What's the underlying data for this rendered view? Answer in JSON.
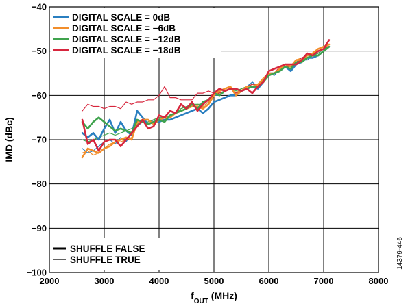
{
  "figure_id": "14379-446",
  "chart_data": {
    "type": "line",
    "title": "",
    "xlabel": {
      "main": "f",
      "sub": "OUT",
      "rest": " (MHz)"
    },
    "ylabel": "IMD (dBc)",
    "xlim": [
      2000,
      8000
    ],
    "ylim": [
      -100,
      -40
    ],
    "x_ticks": [
      2000,
      3000,
      4000,
      5000,
      6000,
      7000,
      8000
    ],
    "y_ticks": [
      -40,
      -50,
      -60,
      -70,
      -80,
      -90,
      -100
    ],
    "y_tick_labels": [
      "−40",
      "−50",
      "−60",
      "−70",
      "−80",
      "−90",
      "−100"
    ],
    "grid": true,
    "legend_placement": "top-left",
    "style_legend_placement": "bottom-left",
    "style_legend": [
      {
        "label": "SHUFFLE FALSE",
        "weight": "thick"
      },
      {
        "label": "SHUFFLE TRUE",
        "weight": "thin"
      }
    ],
    "series": [
      {
        "name": "DIGITAL SCALE = 0dB",
        "color": "#2a7fc0",
        "shuffle": "false",
        "x": [
          2600,
          2700,
          2800,
          2900,
          3000,
          3100,
          3200,
          3300,
          3400,
          3500,
          3600,
          3700,
          3800,
          3900,
          4000,
          4100,
          4200,
          4300,
          4400,
          4500,
          4600,
          4700,
          4800,
          4900,
          5000,
          5100,
          5200,
          5300,
          5400,
          5500,
          5600,
          5700,
          5800,
          5900,
          6000,
          6100,
          6200,
          6300,
          6400,
          6500,
          6600,
          6700,
          6800,
          6900,
          7000,
          7100
        ],
        "y": [
          -68.5,
          -69.5,
          -68.5,
          -70,
          -67.5,
          -65.5,
          -68.5,
          -66,
          -68,
          -69,
          -63.5,
          -65,
          -66.5,
          -66,
          -66,
          -65.5,
          -65.5,
          -65,
          -64.5,
          -64,
          -63.5,
          -63,
          -64,
          -63,
          -61.5,
          -61,
          -60.5,
          -60,
          -60,
          -59,
          -58.5,
          -58,
          -58.5,
          -57,
          -55,
          -55,
          -54.5,
          -53.5,
          -54.5,
          -53,
          -52.5,
          -51.5,
          -51.5,
          -51,
          -50,
          -49
        ]
      },
      {
        "name": "DIGITAL SCALE = −6dB",
        "color": "#f28e2b",
        "shuffle": "false",
        "x": [
          2600,
          2700,
          2800,
          2900,
          3000,
          3100,
          3200,
          3300,
          3400,
          3500,
          3600,
          3700,
          3800,
          3900,
          4000,
          4100,
          4200,
          4300,
          4400,
          4500,
          4600,
          4700,
          4800,
          4900,
          5000,
          5100,
          5200,
          5300,
          5400,
          5500,
          5600,
          5700,
          5800,
          5900,
          6000,
          6100,
          6200,
          6300,
          6400,
          6500,
          6600,
          6700,
          6800,
          6900,
          7000,
          7100
        ],
        "y": [
          -74,
          -72,
          -72.5,
          -73,
          -72,
          -71.5,
          -70.5,
          -70,
          -69.5,
          -70,
          -66,
          -65.5,
          -65.5,
          -66.5,
          -65.5,
          -65,
          -65,
          -64,
          -63.5,
          -63,
          -62.5,
          -62.5,
          -63,
          -62,
          -60,
          -59,
          -58.5,
          -58,
          -60,
          -59,
          -58,
          -58,
          -57.5,
          -56.5,
          -55,
          -55,
          -54,
          -53,
          -53.5,
          -52,
          -52,
          -51,
          -50.5,
          -49.5,
          -49,
          -48.5
        ]
      },
      {
        "name": "DIGITAL SCALE = −12dB",
        "color": "#3fa34d",
        "shuffle": "false",
        "x": [
          2600,
          2700,
          2800,
          2900,
          3000,
          3100,
          3200,
          3300,
          3400,
          3500,
          3600,
          3700,
          3800,
          3900,
          4000,
          4100,
          4200,
          4300,
          4400,
          4500,
          4600,
          4700,
          4800,
          4900,
          5000,
          5100,
          5200,
          5300,
          5400,
          5500,
          5600,
          5700,
          5800,
          5900,
          6000,
          6100,
          6200,
          6300,
          6400,
          6500,
          6600,
          6700,
          6800,
          6900,
          7000,
          7100
        ],
        "y": [
          -66,
          -67.5,
          -66,
          -65,
          -66,
          -67,
          -68,
          -67.5,
          -68,
          -68.5,
          -65.5,
          -66,
          -66.5,
          -66,
          -65.5,
          -66,
          -64.5,
          -64,
          -63.5,
          -63,
          -62,
          -63,
          -61.5,
          -61,
          -59.5,
          -60,
          -59,
          -58.5,
          -58.5,
          -59,
          -58.5,
          -58,
          -58,
          -57,
          -55.5,
          -55,
          -54.5,
          -53.5,
          -54,
          -52.5,
          -52.5,
          -51.5,
          -51,
          -51,
          -50,
          -49
        ]
      },
      {
        "name": "DIGITAL SCALE = −18dB",
        "color": "#d7263d",
        "shuffle": "false",
        "x": [
          2600,
          2700,
          2800,
          2900,
          3000,
          3100,
          3200,
          3300,
          3400,
          3500,
          3600,
          3700,
          3800,
          3900,
          4000,
          4100,
          4200,
          4300,
          4400,
          4500,
          4600,
          4700,
          4800,
          4900,
          5000,
          5100,
          5200,
          5300,
          5400,
          5500,
          5600,
          5700,
          5800,
          5900,
          6000,
          6100,
          6200,
          6300,
          6400,
          6500,
          6600,
          6700,
          6800,
          6900,
          7000,
          7100
        ],
        "y": [
          -65.5,
          -71,
          -70,
          -72.5,
          -70.5,
          -70,
          -70,
          -71.5,
          -70,
          -68.5,
          -67,
          -65.5,
          -67.5,
          -67,
          -64.5,
          -65,
          -63.5,
          -64,
          -62,
          -63,
          -61.5,
          -63.5,
          -62,
          -61,
          -59.5,
          -58.5,
          -59,
          -58.5,
          -58.5,
          -59,
          -58.5,
          -59.5,
          -58,
          -57,
          -54.5,
          -54,
          -53.5,
          -53,
          -53,
          -53,
          -52,
          -50.5,
          -51,
          -50,
          -49.5,
          -47.5
        ]
      },
      {
        "name": "",
        "color": "#2a7fc0",
        "shuffle": "true",
        "x": [
          2600,
          2700,
          2800,
          2900,
          3000,
          3100,
          3200,
          3300,
          3400,
          3500,
          3600,
          3700,
          3800,
          3900,
          4000,
          4100,
          4200,
          4300,
          4400,
          4500,
          4600,
          4700,
          4800,
          4900,
          5000,
          5100,
          5200,
          5300,
          5400,
          5500,
          5600,
          5700,
          5800,
          5900,
          6000,
          6100,
          6200,
          6300,
          6400,
          6500,
          6600,
          6700,
          6800,
          6900,
          7000,
          7100
        ],
        "y": [
          -72,
          -73,
          -72.5,
          -71.5,
          -70.5,
          -70,
          -71,
          -69.5,
          -70.5,
          -68.5,
          -67,
          -66,
          -66.5,
          -65.5,
          -65,
          -66,
          -64.5,
          -64,
          -63.5,
          -63,
          -62.5,
          -62,
          -62.5,
          -61.5,
          -60,
          -60,
          -59,
          -58.5,
          -59.5,
          -58.5,
          -58,
          -57,
          -58,
          -56.5,
          -55,
          -55.5,
          -54,
          -53.5,
          -54.5,
          -52.5,
          -52,
          -52,
          -51,
          -50.5,
          -49.5,
          -49
        ]
      },
      {
        "name": "",
        "color": "#f28e2b",
        "shuffle": "true",
        "x": [
          2600,
          2700,
          2800,
          2900,
          3000,
          3100,
          3200,
          3300,
          3400,
          3500,
          3600,
          3700,
          3800,
          3900,
          4000,
          4100,
          4200,
          4300,
          4400,
          4500,
          4600,
          4700,
          4800,
          4900,
          5000,
          5100,
          5200,
          5300,
          5400,
          5500,
          5600,
          5700,
          5800,
          5900,
          6000,
          6100,
          6200,
          6300,
          6400,
          6500,
          6600,
          6700,
          6800,
          6900,
          7000,
          7100
        ],
        "y": [
          -73,
          -72.5,
          -73.5,
          -73,
          -72,
          -71,
          -70.5,
          -70.5,
          -70,
          -69.5,
          -66.5,
          -66,
          -66,
          -65.5,
          -65,
          -65.5,
          -64.5,
          -64,
          -63,
          -62.5,
          -62.5,
          -62,
          -62.5,
          -61.5,
          -60,
          -59.5,
          -59,
          -58.5,
          -59.5,
          -58.5,
          -58,
          -57.5,
          -57.5,
          -56,
          -55,
          -55,
          -54,
          -53.5,
          -53.5,
          -52,
          -51.5,
          -51,
          -50.5,
          -49.5,
          -49,
          -48.5
        ]
      },
      {
        "name": "",
        "color": "#3fa34d",
        "shuffle": "true",
        "x": [
          2600,
          2700,
          2800,
          2900,
          3000,
          3100,
          3200,
          3300,
          3400,
          3500,
          3600,
          3700,
          3800,
          3900,
          4000,
          4100,
          4200,
          4300,
          4400,
          4500,
          4600,
          4700,
          4800,
          4900,
          5000,
          5100,
          5200,
          5300,
          5400,
          5500,
          5600,
          5700,
          5800,
          5900,
          6000,
          6100,
          6200,
          6300,
          6400,
          6500,
          6600,
          6700,
          6800,
          6900,
          7000,
          7100
        ],
        "y": [
          -70,
          -70.5,
          -70,
          -69.5,
          -69,
          -68.5,
          -69,
          -68.5,
          -68,
          -67.5,
          -66.5,
          -66,
          -66,
          -65.5,
          -65,
          -65,
          -64.5,
          -64,
          -63,
          -62.5,
          -62,
          -62,
          -62,
          -61,
          -60,
          -59.5,
          -59,
          -58.5,
          -59,
          -58.5,
          -58,
          -57.5,
          -57.5,
          -56.5,
          -55,
          -55,
          -54,
          -53.5,
          -53.5,
          -52.5,
          -52,
          -51.5,
          -51,
          -50.5,
          -49.5,
          -49
        ]
      },
      {
        "name": "",
        "color": "#d7263d",
        "shuffle": "true",
        "x": [
          2600,
          2700,
          2800,
          2900,
          3000,
          3100,
          3200,
          3300,
          3400,
          3500,
          3600,
          3700,
          3800,
          3900,
          4000,
          4100,
          4200,
          4300,
          4400,
          4500,
          4600,
          4700,
          4800,
          4900,
          5000,
          5100,
          5200,
          5300,
          5400,
          5500,
          5600,
          5700,
          5800,
          5900,
          6000,
          6100,
          6200,
          6300,
          6400,
          6500,
          6600,
          6700,
          6800,
          6900,
          7000,
          7100
        ],
        "y": [
          -63.5,
          -62,
          -62.5,
          -62.5,
          -63,
          -62.5,
          -62.5,
          -63,
          -61.5,
          -62,
          -61.5,
          -61.5,
          -61,
          -61,
          -60,
          -58,
          -60.5,
          -60.5,
          -61,
          -61,
          -61,
          -59.5,
          -59.5,
          -59,
          -59.5,
          -59.5,
          -59,
          -58.5,
          -59.5,
          -59,
          -58,
          -57.5,
          -57.5,
          -56.5,
          -55.5,
          -55,
          -53.5,
          -53.5,
          -53.5,
          -52.5,
          -51.5,
          -51,
          -51,
          -50,
          -49.5,
          -48.5
        ]
      }
    ]
  }
}
